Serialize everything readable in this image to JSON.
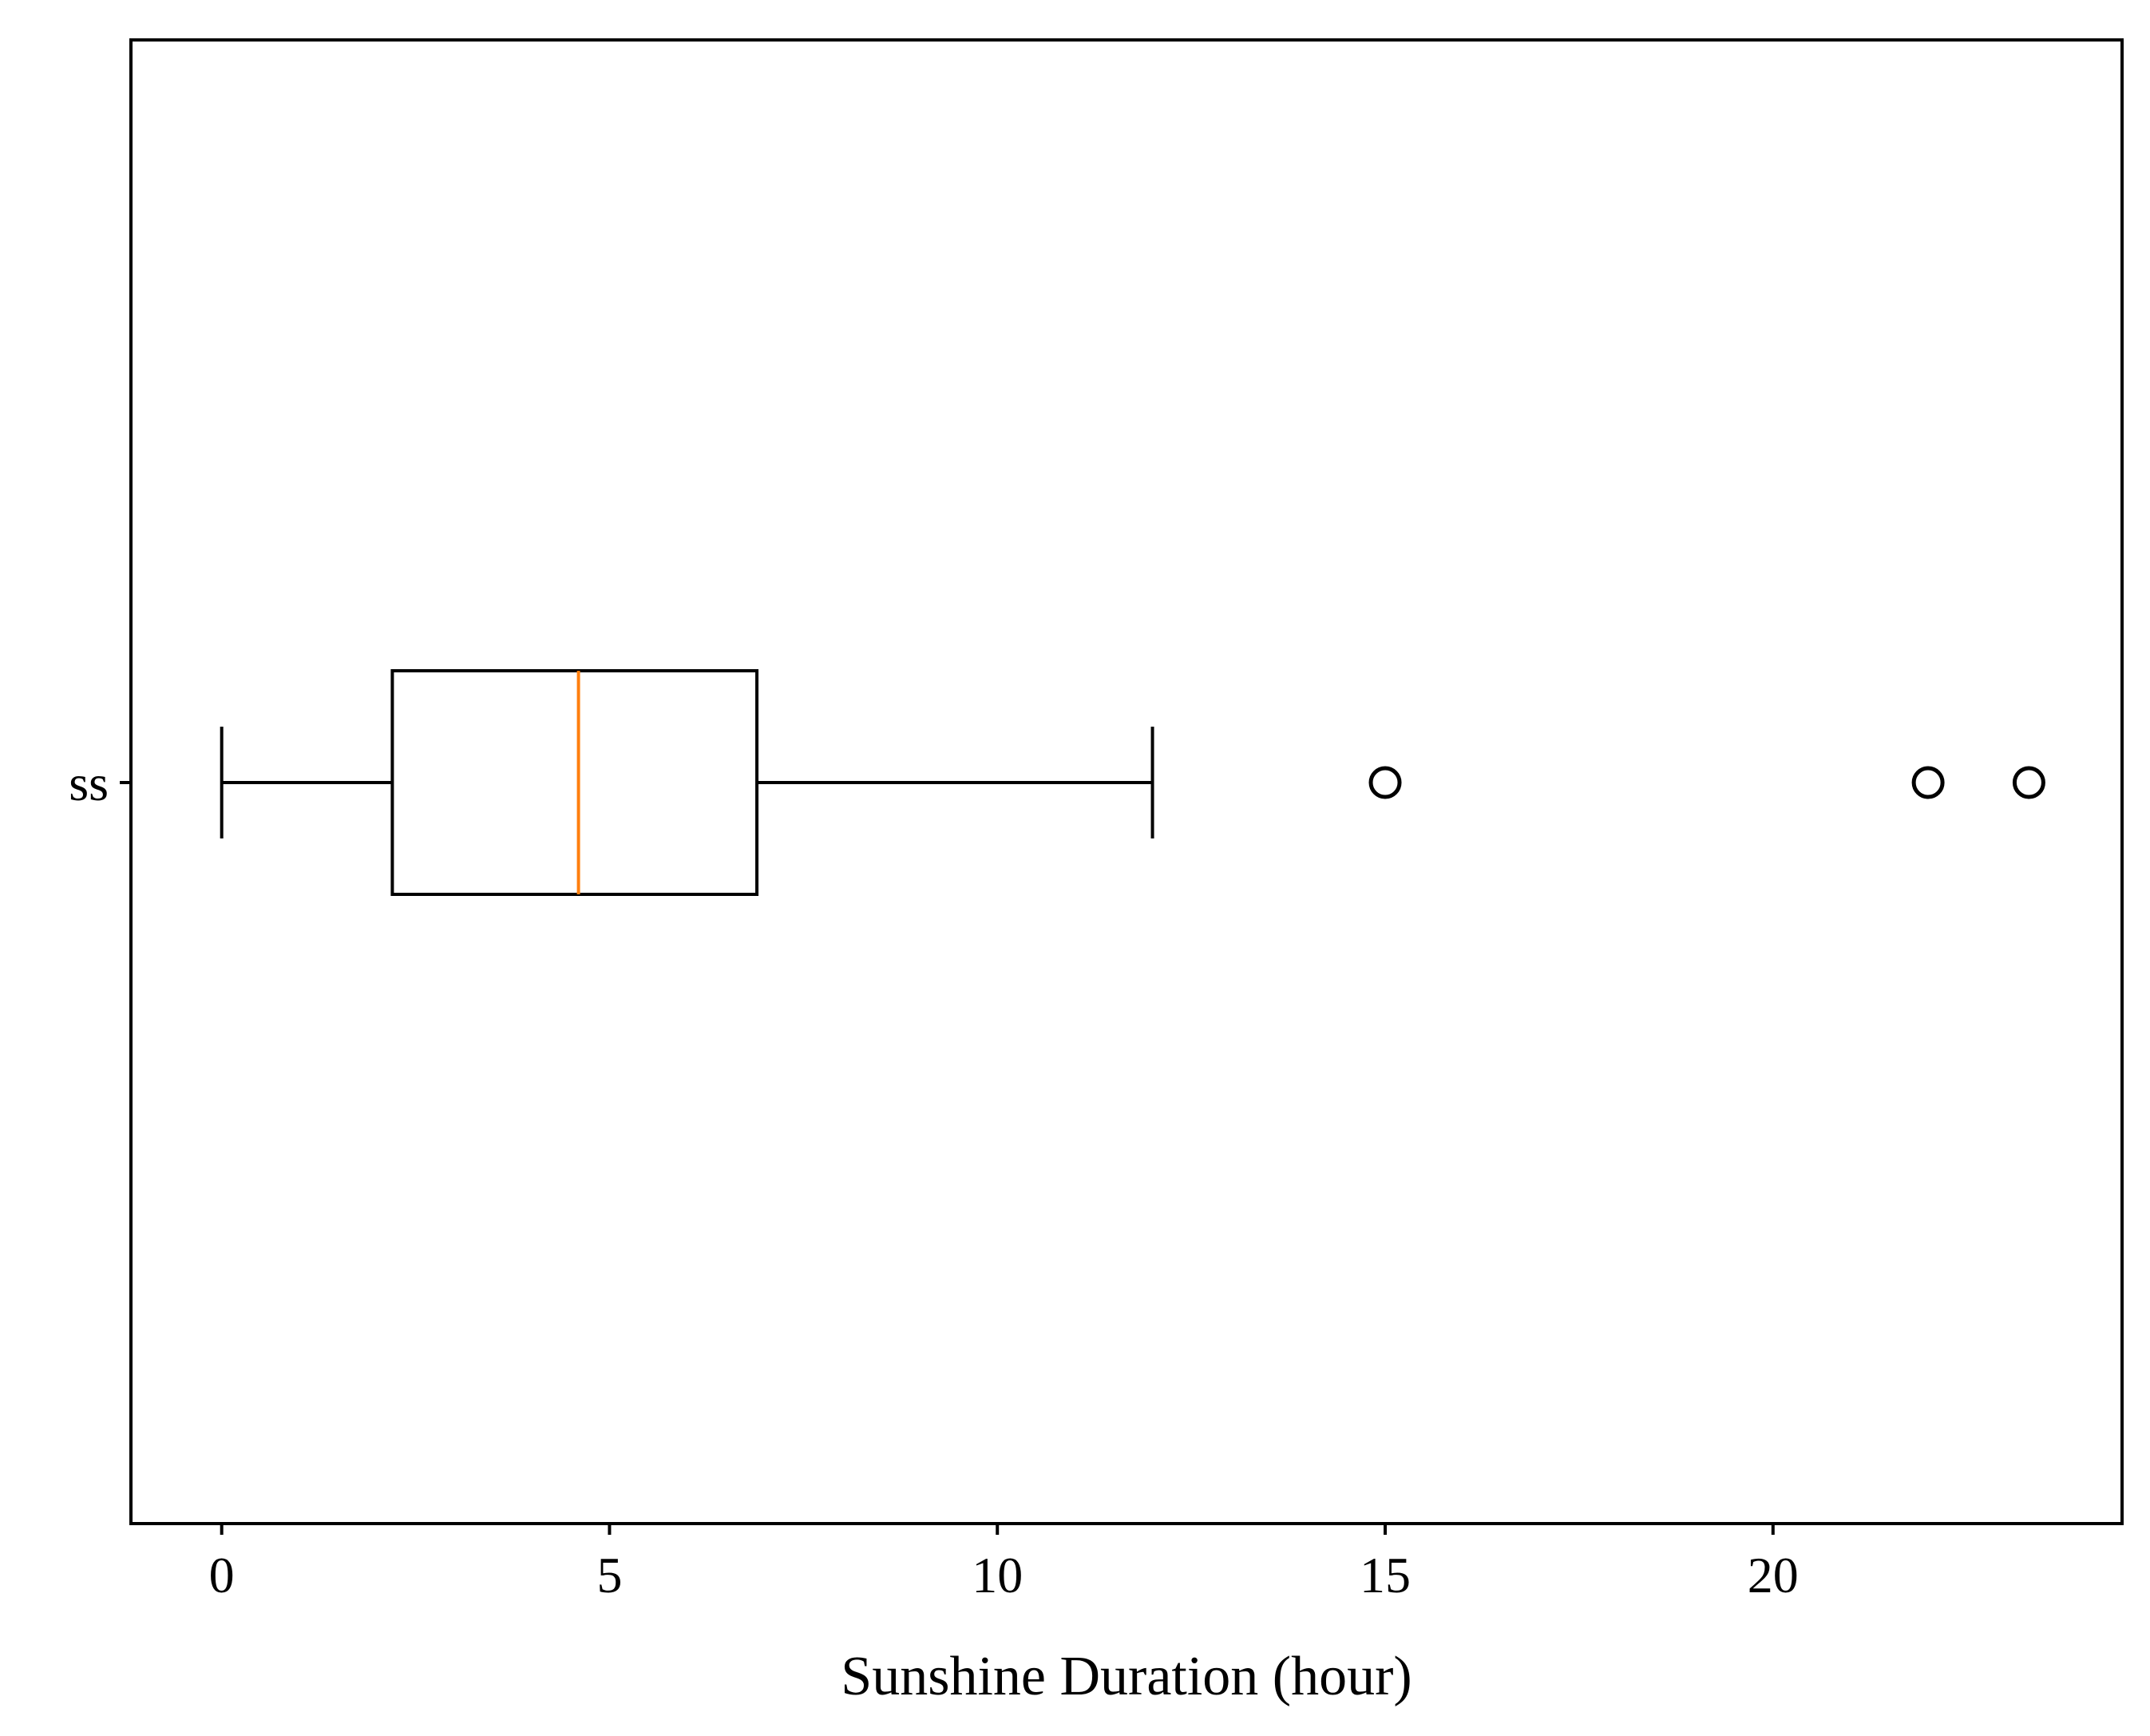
{
  "chart_data": {
    "type": "box",
    "orientation": "horizontal",
    "title": "",
    "xlabel": "Sunshine Duration (hour)",
    "ylabel": "",
    "xlim": [
      -1.17,
      24.5
    ],
    "xticks": [
      0,
      5,
      10,
      15,
      20
    ],
    "xtick_labels": [
      "0",
      "5",
      "10",
      "15",
      "20"
    ],
    "grid": false,
    "series": [
      {
        "category": "ss",
        "whisker_low": 0,
        "q1": 2.2,
        "median": 4.6,
        "q3": 6.9,
        "whisker_high": 12,
        "outliers": [
          15.0,
          22.0,
          23.3
        ]
      }
    ],
    "colors": {
      "box": "#000000",
      "median": "#ff7f0e",
      "whisker": "#000000",
      "flier": "#000000"
    }
  }
}
